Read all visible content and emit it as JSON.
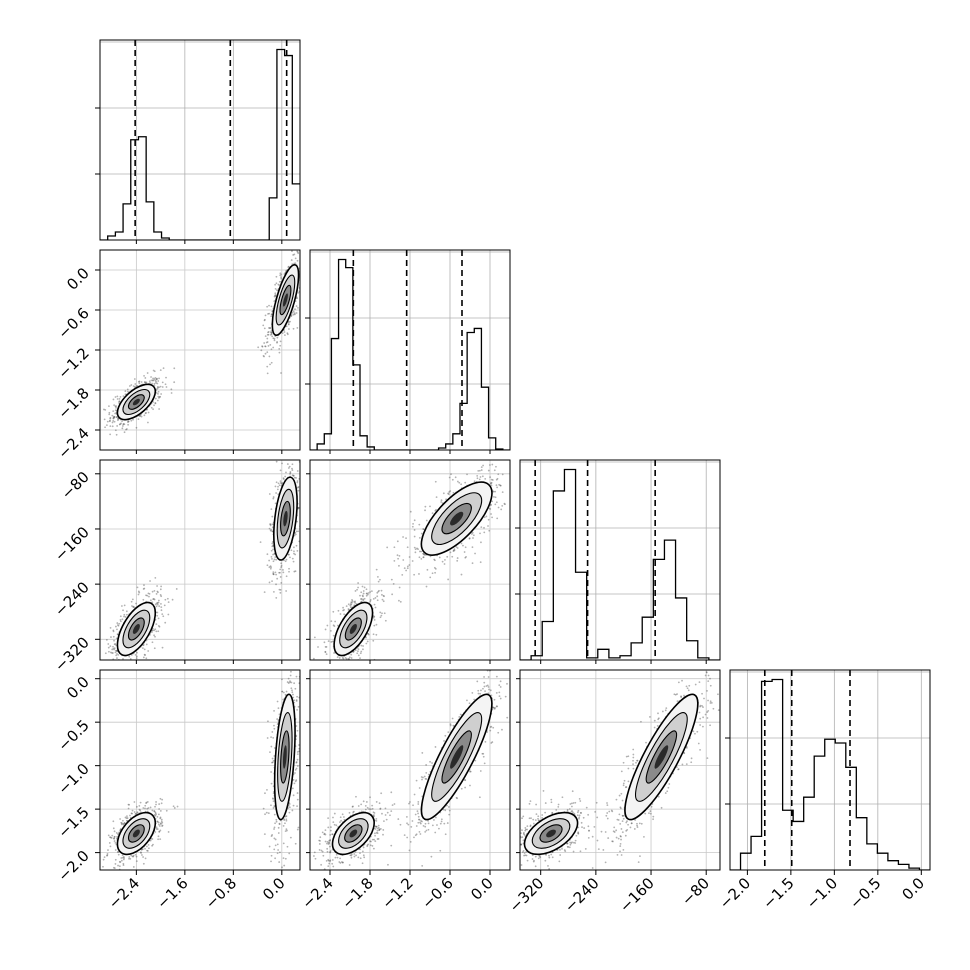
{
  "chart_data": {
    "type": "corner",
    "title": "",
    "grid": true,
    "parameters": [
      {
        "range": [
          -3.0,
          0.3
        ],
        "ticks": [
          -2.4,
          -1.6,
          -0.8,
          0.0
        ],
        "tick_labels": [
          "−2.4",
          "−1.6",
          "−0.8",
          "0.0"
        ]
      },
      {
        "range": [
          -2.7,
          0.3
        ],
        "ticks": [
          -2.4,
          -1.8,
          -1.2,
          -0.6,
          0.0
        ],
        "tick_labels": [
          "−2.4",
          "−1.8",
          "−1.2",
          "−0.6",
          "0.0"
        ]
      },
      {
        "range": [
          -350,
          -60
        ],
        "ticks": [
          -320,
          -240,
          -160,
          -80
        ],
        "tick_labels": [
          "−320",
          "−240",
          "−160",
          "−80"
        ]
      },
      {
        "range": [
          -2.2,
          0.1
        ],
        "ticks": [
          -2.0,
          -1.5,
          -1.0,
          -0.5,
          0.0
        ],
        "tick_labels": [
          "−2.0",
          "−1.5",
          "−1.0",
          "−0.5",
          "0.0"
        ]
      }
    ],
    "quantile_lines": [
      [
        -2.42,
        -0.85,
        0.08
      ],
      [
        -2.05,
        -1.25,
        -0.42
      ],
      [
        -328,
        -252,
        -154
      ],
      [
        -1.8,
        -1.49,
        -0.82
      ]
    ],
    "histograms": [
      {
        "bins": [
          -3.0,
          0.3
        ],
        "counts": [
          0,
          20,
          40,
          180,
          500,
          515,
          190,
          40,
          10,
          0,
          0,
          0,
          0,
          0,
          0,
          0,
          0,
          0,
          0,
          0,
          0,
          0,
          210,
          950,
          920,
          280
        ]
      },
      {
        "bins": [
          -2.7,
          0.3
        ],
        "counts": [
          0,
          30,
          80,
          550,
          940,
          900,
          420,
          70,
          15,
          0,
          0,
          0,
          0,
          0,
          0,
          0,
          0,
          0,
          10,
          30,
          80,
          230,
          580,
          600,
          310,
          60,
          5,
          0
        ]
      },
      {
        "bins": [
          -350,
          -60
        ],
        "counts": [
          0,
          20,
          180,
          790,
          890,
          410,
          10,
          50,
          10,
          20,
          80,
          200,
          470,
          560,
          290,
          90,
          10,
          0
        ]
      },
      {
        "bins": [
          -2.2,
          0.1
        ],
        "counts": [
          0,
          90,
          180,
          1010,
          1020,
          320,
          260,
          390,
          610,
          700,
          680,
          550,
          280,
          140,
          90,
          50,
          30,
          10,
          0
        ]
      }
    ],
    "pairs": [
      {
        "row": 1,
        "col": 0,
        "clusters": [
          {
            "x": -2.4,
            "y": -1.98,
            "sx": 0.13,
            "sy": 0.11,
            "rho": 0.6,
            "n": 600
          },
          {
            "x": 0.06,
            "y": -0.45,
            "sx": 0.09,
            "sy": 0.22,
            "rho": 0.7,
            "n": 600
          }
        ]
      },
      {
        "row": 2,
        "col": 0,
        "clusters": [
          {
            "x": -2.4,
            "y": -305,
            "sx": 0.13,
            "sy": 16,
            "rho": 0.6,
            "n": 600
          },
          {
            "x": 0.06,
            "y": -145,
            "sx": 0.08,
            "sy": 25,
            "rho": 0.4,
            "n": 600
          }
        ]
      },
      {
        "row": 2,
        "col": 1,
        "clusters": [
          {
            "x": -2.05,
            "y": -305,
            "sx": 0.12,
            "sy": 16,
            "rho": 0.6,
            "n": 600
          },
          {
            "x": -0.5,
            "y": -145,
            "sx": 0.22,
            "sy": 22,
            "rho": 0.7,
            "n": 600
          }
        ]
      },
      {
        "row": 3,
        "col": 0,
        "clusters": [
          {
            "x": -2.4,
            "y": -1.78,
            "sx": 0.13,
            "sy": 0.1,
            "rho": 0.5,
            "n": 600
          },
          {
            "x": 0.05,
            "y": -0.9,
            "sx": 0.07,
            "sy": 0.3,
            "rho": 0.4,
            "n": 600
          }
        ]
      },
      {
        "row": 3,
        "col": 1,
        "clusters": [
          {
            "x": -2.05,
            "y": -1.78,
            "sx": 0.13,
            "sy": 0.1,
            "rho": 0.5,
            "n": 600
          },
          {
            "x": -0.5,
            "y": -0.9,
            "sx": 0.22,
            "sy": 0.3,
            "rho": 0.85,
            "n": 600
          }
        ]
      },
      {
        "row": 3,
        "col": 2,
        "clusters": [
          {
            "x": -305,
            "y": -1.78,
            "sx": 16,
            "sy": 0.1,
            "rho": 0.5,
            "n": 600
          },
          {
            "x": -145,
            "y": -0.9,
            "sx": 22,
            "sy": 0.3,
            "rho": 0.85,
            "n": 600
          }
        ]
      }
    ]
  }
}
